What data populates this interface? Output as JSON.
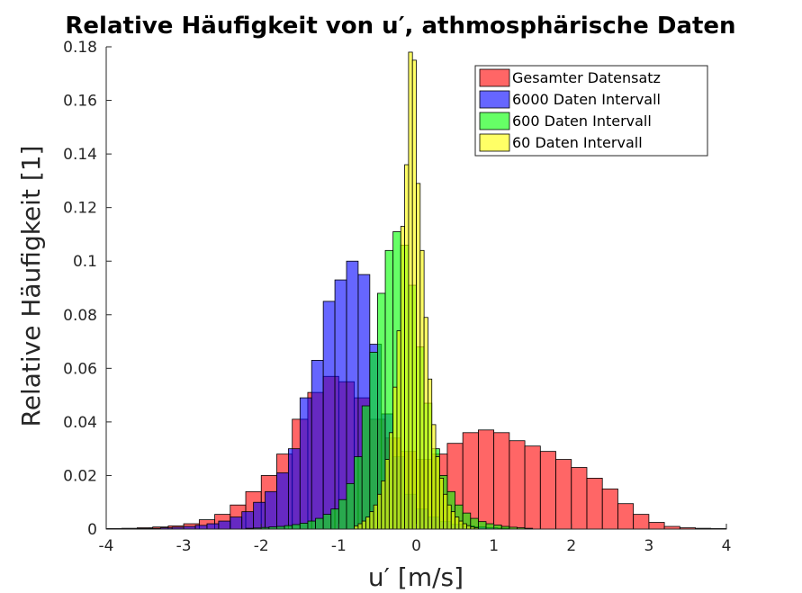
{
  "chart_data": {
    "type": "bar",
    "title": "Relative Häufigkeit von u′, athmosphärische Daten",
    "xlabel": "u′ [m/s]",
    "ylabel": "Relative Häufigkeit [1]",
    "xlim": [
      -4,
      4
    ],
    "ylim": [
      0,
      0.18
    ],
    "xticks": [
      -4,
      -3,
      -2,
      -1,
      0,
      1,
      2,
      3,
      4
    ],
    "xtick_labels": [
      "-4",
      "-3",
      "-2",
      "-1",
      "0",
      "1",
      "2",
      "3",
      "4"
    ],
    "yticks": [
      0,
      0.02,
      0.04,
      0.06,
      0.08,
      0.1,
      0.12,
      0.14,
      0.16,
      0.18
    ],
    "ytick_labels": [
      "0",
      "0.02",
      "0.04",
      "0.06",
      "0.08",
      "0.1",
      "0.12",
      "0.14",
      "0.16",
      "0.18"
    ],
    "grid": false,
    "legend_position": "top-right",
    "series": [
      {
        "name": "Gesamter Datensatz",
        "color": "#ff0000",
        "opacity": 0.6,
        "bin_start": -4.0,
        "bin_width": 0.2,
        "values": [
          0.0002,
          0.0003,
          0.0005,
          0.0008,
          0.0012,
          0.002,
          0.0035,
          0.0055,
          0.009,
          0.014,
          0.02,
          0.028,
          0.041,
          0.051,
          0.057,
          0.055,
          0.049,
          0.041,
          0.034,
          0.029,
          0.026,
          0.028,
          0.032,
          0.036,
          0.037,
          0.036,
          0.033,
          0.031,
          0.029,
          0.026,
          0.023,
          0.019,
          0.015,
          0.0095,
          0.0055,
          0.0025,
          0.001,
          0.0005,
          0.0003,
          0.0002
        ]
      },
      {
        "name": "6000 Daten Intervall",
        "color": "#0000ff",
        "opacity": 0.6,
        "bin_start": -3.6,
        "bin_width": 0.15,
        "values": [
          0.0002,
          0.0003,
          0.0005,
          0.0007,
          0.001,
          0.0014,
          0.002,
          0.003,
          0.0045,
          0.0065,
          0.01,
          0.014,
          0.021,
          0.03,
          0.049,
          0.063,
          0.085,
          0.093,
          0.1,
          0.095,
          0.069,
          0.043,
          0.027,
          0.013,
          0.0075,
          0.0045,
          0.0028,
          0.0018,
          0.0012,
          0.0008,
          0.0005,
          0.0003
        ]
      },
      {
        "name": "600 Daten Intervall",
        "color": "#00ff00",
        "opacity": 0.6,
        "bin_start": -2.2,
        "bin_width": 0.1,
        "values": [
          0.0003,
          0.0004,
          0.0006,
          0.0008,
          0.001,
          0.0013,
          0.0017,
          0.0022,
          0.003,
          0.004,
          0.0055,
          0.0075,
          0.011,
          0.017,
          0.027,
          0.046,
          0.066,
          0.088,
          0.104,
          0.111,
          0.106,
          0.091,
          0.068,
          0.047,
          0.03,
          0.02,
          0.014,
          0.009,
          0.006,
          0.004,
          0.0028,
          0.002,
          0.0015,
          0.001,
          0.0007,
          0.0005,
          0.0003
        ]
      },
      {
        "name": "60 Daten Intervall",
        "color": "#ffff00",
        "opacity": 0.6,
        "bin_start": -0.8,
        "bin_width": 0.05,
        "values": [
          0.0012,
          0.002,
          0.003,
          0.0045,
          0.0065,
          0.009,
          0.013,
          0.018,
          0.026,
          0.036,
          0.053,
          0.074,
          0.113,
          0.136,
          0.178,
          0.175,
          0.129,
          0.104,
          0.079,
          0.056,
          0.039,
          0.027,
          0.019,
          0.013,
          0.009,
          0.0065,
          0.0045,
          0.003,
          0.002,
          0.0013,
          0.0008,
          0.0005
        ]
      }
    ]
  }
}
